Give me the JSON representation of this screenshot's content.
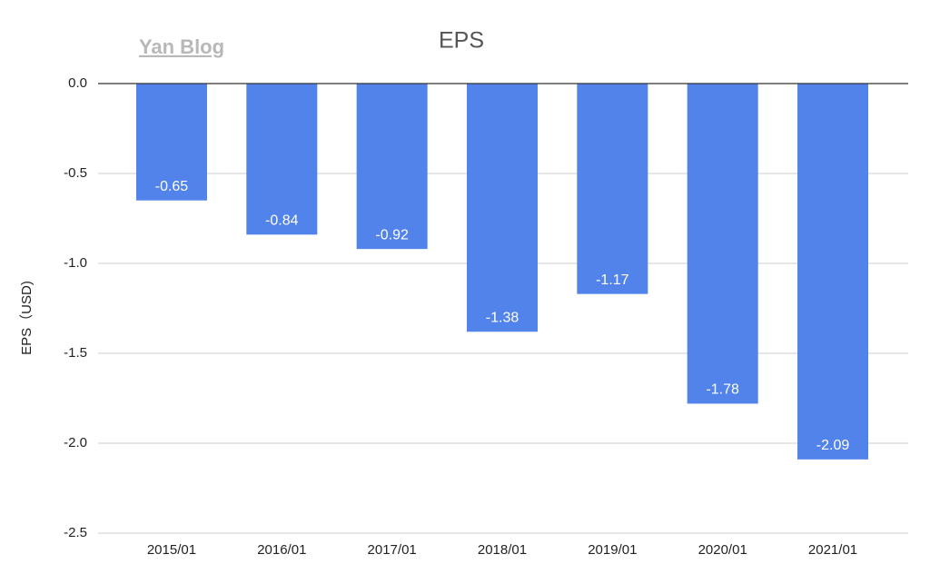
{
  "chart_data": {
    "type": "bar",
    "title": "EPS",
    "watermark": "Yan Blog",
    "y_label": "EPS（USD)",
    "categories": [
      "2015/01",
      "2016/01",
      "2017/01",
      "2018/01",
      "2019/01",
      "2020/01",
      "2021/01"
    ],
    "values": [
      -0.65,
      -0.84,
      -0.92,
      -1.38,
      -1.17,
      -1.78,
      -2.09
    ],
    "color": "#5283ea",
    "ylim": [
      -2.5,
      0
    ],
    "yticks": [
      {
        "value": 0,
        "label": "0.0"
      },
      -0.5,
      {
        "value": -1,
        "label": "-1.0"
      },
      -1.5,
      {
        "value": -2,
        "label": "-2.0"
      },
      -2.5
    ],
    "grid": true
  }
}
